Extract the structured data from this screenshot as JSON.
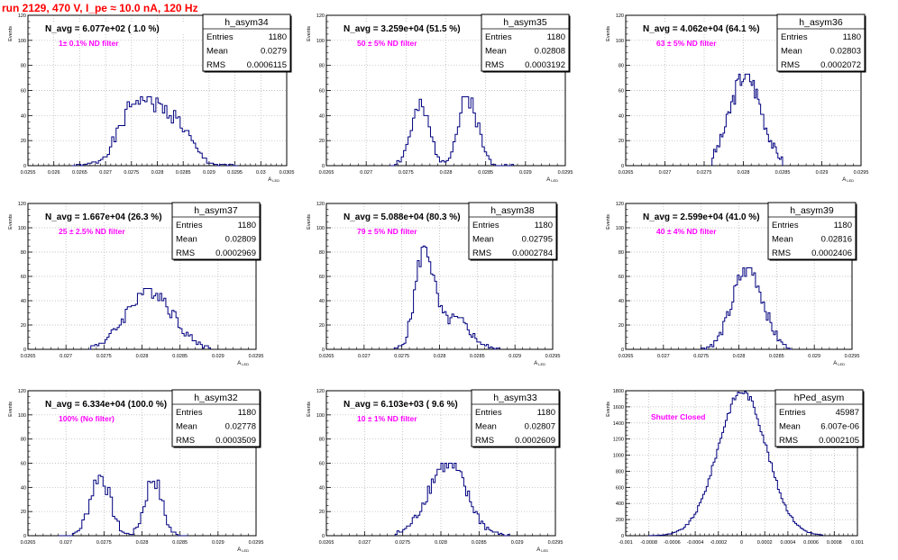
{
  "header": {
    "title": "run 2129,   470 V, I_pe ≈ 10.0 nA, 120 Hz"
  },
  "chart_data": [
    {
      "type": "histogram",
      "name": "h_asym34",
      "annotation": "N_avg = 6.077e+02 ( 1.0 %)",
      "filter": "1± 0.1% ND filter",
      "stats": [
        [
          "Entries",
          "1180"
        ],
        [
          "Mean",
          "0.0279"
        ],
        [
          "RMS",
          "0.0006115"
        ]
      ],
      "xlim": [
        0.0255,
        0.0305
      ],
      "ylim": [
        0,
        120
      ],
      "xticks": [
        0.0255,
        0.026,
        0.0265,
        0.027,
        0.0275,
        0.028,
        0.0285,
        0.029,
        0.0295,
        0.03,
        0.0305
      ],
      "xticklabels": [
        "0.0255",
        "0.026",
        "0.0265",
        "0.027",
        "0.0275",
        "0.028",
        "0.0285",
        "0.029",
        "0.0295",
        "0.03",
        "0.0305"
      ],
      "yticks": [
        0,
        20,
        40,
        60,
        80,
        100,
        120
      ],
      "xlabel": "A_LED",
      "ylabel": "Events",
      "hist": {
        "mean": 0.0279,
        "rms": 0.0006115,
        "entries": 1180,
        "x0": 0.02635,
        "x1": 0.02955,
        "nbins": 75,
        "peak_y": 55,
        "modes": [
          [
            0.02765,
            0.00035,
            1
          ],
          [
            0.02835,
            0.0003,
            0.6
          ]
        ]
      }
    },
    {
      "type": "histogram",
      "name": "h_asym35",
      "annotation": "N_avg = 3.259e+04 (51.5 %)",
      "filter": "50 ± 5% ND filter",
      "stats": [
        [
          "Entries",
          "1180"
        ],
        [
          "Mean",
          "0.02808"
        ],
        [
          "RMS",
          "0.0003192"
        ]
      ],
      "xlim": [
        0.0265,
        0.0295
      ],
      "ylim": [
        0,
        120
      ],
      "xticks": [
        0.0265,
        0.027,
        0.0275,
        0.028,
        0.0285,
        0.029,
        0.0295
      ],
      "xticklabels": [
        "0.0265",
        "0.027",
        "0.0275",
        "0.028",
        "0.0285",
        "0.029",
        "0.0295"
      ],
      "yticks": [
        0,
        20,
        40,
        60,
        80,
        100,
        120
      ],
      "xlabel": "A_LED",
      "ylabel": "Events",
      "hist": {
        "mean": 0.02808,
        "rms": 0.0003192,
        "entries": 1180,
        "x0": 0.0273,
        "x1": 0.02885,
        "nbins": 55,
        "peak_y": 55,
        "modes": [
          [
            0.02768,
            0.00012,
            0.82
          ],
          [
            0.02828,
            0.00012,
            1
          ]
        ]
      }
    },
    {
      "type": "histogram",
      "name": "h_asym36",
      "annotation": "N_avg = 4.062e+04 (64.1 %)",
      "filter": "63 ± 5% ND filter",
      "stats": [
        [
          "Entries",
          "1180"
        ],
        [
          "Mean",
          "0.02803"
        ],
        [
          "RMS",
          "0.0002072"
        ]
      ],
      "xlim": [
        0.0265,
        0.0295
      ],
      "ylim": [
        0,
        120
      ],
      "xticks": [
        0.0265,
        0.027,
        0.0275,
        0.028,
        0.0285,
        0.029,
        0.0295
      ],
      "xticklabels": [
        "0.0265",
        "0.027",
        "0.0275",
        "0.028",
        "0.0285",
        "0.029",
        "0.0295"
      ],
      "yticks": [
        0,
        20,
        40,
        60,
        80,
        100,
        120
      ],
      "xlabel": "A_LED",
      "ylabel": "Events",
      "hist": {
        "mean": 0.02803,
        "rms": 0.0002072,
        "entries": 1180,
        "x0": 0.0276,
        "x1": 0.0285,
        "nbins": 45,
        "peak_y": 73,
        "modes": [
          [
            0.02803,
            0.0002,
            1
          ]
        ]
      }
    },
    {
      "type": "histogram",
      "name": "h_asym37",
      "annotation": "N_avg = 1.667e+04 (26.3 %)",
      "filter": "25 ± 2.5% ND filter",
      "stats": [
        [
          "Entries",
          "1180"
        ],
        [
          "Mean",
          "0.02809"
        ],
        [
          "RMS",
          "0.0002969"
        ]
      ],
      "xlim": [
        0.0265,
        0.0295
      ],
      "ylim": [
        0,
        120
      ],
      "xticks": [
        0.0265,
        0.027,
        0.0275,
        0.028,
        0.0285,
        0.029,
        0.0295
      ],
      "xticklabels": [
        "0.0265",
        "0.027",
        "0.0275",
        "0.028",
        "0.0285",
        "0.029",
        "0.0295"
      ],
      "yticks": [
        0,
        20,
        40,
        60,
        80,
        100,
        120
      ],
      "xlabel": "A_LED",
      "ylabel": "Events",
      "hist": {
        "mean": 0.02809,
        "rms": 0.0002969,
        "entries": 1180,
        "x0": 0.0273,
        "x1": 0.0289,
        "nbins": 60,
        "peak_y": 50,
        "modes": [
          [
            0.0281,
            0.0003,
            1
          ]
        ]
      }
    },
    {
      "type": "histogram",
      "name": "h_asym38",
      "annotation": "N_avg = 5.088e+04 (80.3 %)",
      "filter": "79 ± 5% ND filter",
      "stats": [
        [
          "Entries",
          "1180"
        ],
        [
          "Mean",
          "0.02795"
        ],
        [
          "RMS",
          "0.0002784"
        ]
      ],
      "xlim": [
        0.0265,
        0.0295
      ],
      "ylim": [
        0,
        120
      ],
      "xticks": [
        0.0265,
        0.027,
        0.0275,
        0.028,
        0.0285,
        0.029,
        0.0295
      ],
      "xticklabels": [
        "0.0265",
        "0.027",
        "0.0275",
        "0.028",
        "0.0285",
        "0.029",
        "0.0295"
      ],
      "yticks": [
        0,
        20,
        40,
        60,
        80,
        100,
        120
      ],
      "xlabel": "A_LED",
      "ylabel": "Events",
      "hist": {
        "mean": 0.02795,
        "rms": 0.0002784,
        "entries": 1180,
        "x0": 0.0274,
        "x1": 0.0288,
        "nbins": 55,
        "peak_y": 85,
        "modes": [
          [
            0.0278,
            0.00012,
            1
          ],
          [
            0.0282,
            0.0002,
            0.3
          ]
        ]
      }
    },
    {
      "type": "histogram",
      "name": "h_asym39",
      "annotation": "N_avg = 2.599e+04 (41.0 %)",
      "filter": "40 ± 4% ND filter",
      "stats": [
        [
          "Entries",
          "1180"
        ],
        [
          "Mean",
          "0.02816"
        ],
        [
          "RMS",
          "0.0002406"
        ]
      ],
      "xlim": [
        0.0265,
        0.0295
      ],
      "ylim": [
        0,
        120
      ],
      "xticks": [
        0.0265,
        0.027,
        0.0275,
        0.028,
        0.0285,
        0.029,
        0.0295
      ],
      "xticklabels": [
        "0.0265",
        "0.027",
        "0.0275",
        "0.028",
        "0.0285",
        "0.029",
        "0.0295"
      ],
      "yticks": [
        0,
        20,
        40,
        60,
        80,
        100,
        120
      ],
      "xlabel": "A_LED",
      "ylabel": "Events",
      "hist": {
        "mean": 0.02816,
        "rms": 0.0002406,
        "entries": 1180,
        "x0": 0.0275,
        "x1": 0.0287,
        "nbins": 50,
        "peak_y": 67,
        "modes": [
          [
            0.02812,
            0.0002,
            1
          ]
        ]
      }
    },
    {
      "type": "histogram",
      "name": "h_asym32",
      "annotation": "N_avg = 6.334e+04 (100.0 %)",
      "filter": "100% (No filter)",
      "stats": [
        [
          "Entries",
          "1180"
        ],
        [
          "Mean",
          "0.02778"
        ],
        [
          "RMS",
          "0.0003509"
        ]
      ],
      "xlim": [
        0.0265,
        0.0295
      ],
      "ylim": [
        0,
        120
      ],
      "xticks": [
        0.0265,
        0.027,
        0.0275,
        0.028,
        0.0285,
        0.029,
        0.0295
      ],
      "xticklabels": [
        "0.0265",
        "0.027",
        "0.0275",
        "0.028",
        "0.0285",
        "0.029",
        "0.0295"
      ],
      "yticks": [
        0,
        20,
        40,
        60,
        80,
        100,
        120
      ],
      "xlabel": "A_LED",
      "ylabel": "Events",
      "hist": {
        "mean": 0.02778,
        "rms": 0.0003509,
        "entries": 1180,
        "x0": 0.0269,
        "x1": 0.0286,
        "nbins": 55,
        "peak_y": 50,
        "modes": [
          [
            0.02745,
            0.00013,
            1
          ],
          [
            0.02815,
            0.00011,
            0.95
          ]
        ]
      }
    },
    {
      "type": "histogram",
      "name": "h_asym33",
      "annotation": "N_avg = 6.103e+03 ( 9.6 %)",
      "filter": "10 ± 1% ND filter",
      "stats": [
        [
          "Entries",
          "1180"
        ],
        [
          "Mean",
          "0.02807"
        ],
        [
          "RMS",
          "0.0002609"
        ]
      ],
      "xlim": [
        0.0265,
        0.0295
      ],
      "ylim": [
        0,
        120
      ],
      "xticks": [
        0.0265,
        0.027,
        0.0275,
        0.028,
        0.0285,
        0.029,
        0.0295
      ],
      "xticklabels": [
        "0.0265",
        "0.027",
        "0.0275",
        "0.028",
        "0.0285",
        "0.029",
        "0.0295"
      ],
      "yticks": [
        0,
        20,
        40,
        60,
        80,
        100,
        120
      ],
      "xlabel": "A_LED",
      "ylabel": "Events",
      "hist": {
        "mean": 0.02807,
        "rms": 0.0002609,
        "entries": 1180,
        "x0": 0.0274,
        "x1": 0.0289,
        "nbins": 60,
        "peak_y": 60,
        "modes": [
          [
            0.02808,
            0.00025,
            1
          ]
        ]
      }
    },
    {
      "type": "histogram",
      "name": "hPed_asym",
      "annotation": "",
      "filter": "Shutter Closed",
      "stats": [
        [
          "Entries",
          "45987"
        ],
        [
          "Mean",
          "6.007e-06"
        ],
        [
          "RMS",
          "0.0002105"
        ]
      ],
      "xlim": [
        -0.001,
        0.001
      ],
      "ylim": [
        0,
        1800
      ],
      "xticks": [
        -0.001,
        -0.0008,
        -0.0006,
        -0.0004,
        -0.0002,
        0,
        0.0002,
        0.0004,
        0.0006,
        0.0008,
        0.001
      ],
      "xticklabels": [
        "-0.001",
        "-0.0008",
        "-0.0006",
        "-0.0004",
        "-0.0002",
        "0",
        "0.0002",
        "0.0004",
        "0.0006",
        "0.0008",
        "0.001"
      ],
      "yticks": [
        0,
        200,
        400,
        600,
        800,
        1000,
        1200,
        1400,
        1600,
        1800
      ],
      "xlabel": "",
      "ylabel": "Events",
      "hist": {
        "mean": 6e-06,
        "rms": 0.0002105,
        "entries": 45987,
        "x0": -0.0008,
        "x1": 0.0007,
        "nbins": 100,
        "peak_y": 1790,
        "modes": [
          [
            6e-06,
            0.00021,
            1
          ]
        ]
      }
    }
  ],
  "colors": {
    "title": "#ff0000",
    "filter_label": "#ff00ff",
    "line": "#00007f",
    "grid": "#b0b0b0",
    "frame": "#000000"
  },
  "icons": []
}
